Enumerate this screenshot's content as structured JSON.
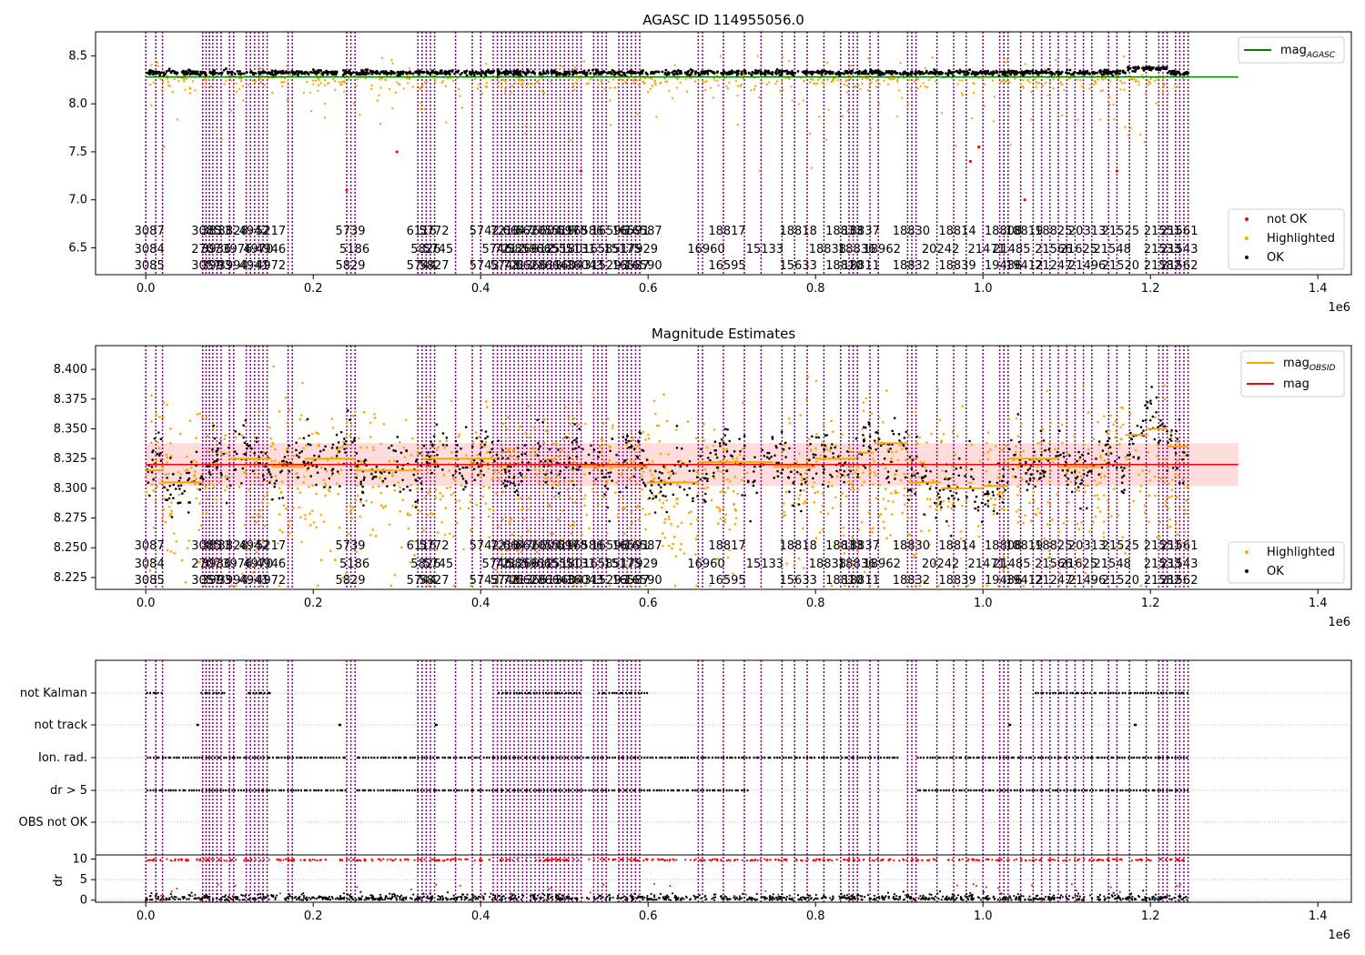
{
  "chart_data": [
    {
      "type": "scatter",
      "title": "AGASC ID 114955056.0",
      "xlim": [
        -60000,
        1440000
      ],
      "ylim": [
        6.22,
        8.75
      ],
      "x_ticks": [
        "0.0",
        "0.2",
        "0.4",
        "0.6",
        "0.8",
        "1.0",
        "1.2",
        "1.4"
      ],
      "x_tick_values": [
        0,
        200000,
        400000,
        600000,
        800000,
        1000000,
        1200000,
        1400000
      ],
      "x_offset_label": "1e6",
      "y_ticks": [
        "6.5",
        "7.0",
        "7.5",
        "8.0",
        "8.5"
      ],
      "y_tick_values": [
        6.5,
        7.0,
        7.5,
        8.0,
        8.5
      ],
      "line": {
        "name": "mag",
        "name_sub": "AGASC",
        "y": 8.28,
        "x_range": [
          0,
          1305000
        ],
        "color": "#008000"
      },
      "ok_band": {
        "x_range": [
          0,
          1245000
        ],
        "y_center": 8.325,
        "spread": 0.03
      },
      "scatter_series": [
        {
          "name": "not OK",
          "color": "#ff0000"
        },
        {
          "name": "Highlighted",
          "color": "#ffa500"
        },
        {
          "name": "OK",
          "color": "#000000"
        }
      ],
      "not_ok_points": [
        [
          300000,
          7.5
        ],
        [
          240000,
          7.1
        ],
        [
          985000,
          7.4
        ],
        [
          995000,
          7.55
        ],
        [
          1050000,
          7.0
        ],
        [
          1160000,
          7.3
        ],
        [
          520000,
          7.3
        ]
      ],
      "legend_position": "upper right (line), lower right (points)"
    },
    {
      "type": "scatter",
      "title": "Magnitude Estimates",
      "xlim": [
        -60000,
        1440000
      ],
      "ylim": [
        8.215,
        8.42
      ],
      "x_ticks": [
        "0.0",
        "0.2",
        "0.4",
        "0.6",
        "0.8",
        "1.0",
        "1.2",
        "1.4"
      ],
      "x_tick_values": [
        0,
        200000,
        400000,
        600000,
        800000,
        1000000,
        1200000,
        1400000
      ],
      "x_offset_label": "1e6",
      "y_ticks": [
        "8.225",
        "8.250",
        "8.275",
        "8.300",
        "8.325",
        "8.350",
        "8.375",
        "8.400"
      ],
      "y_tick_values": [
        8.225,
        8.25,
        8.275,
        8.3,
        8.325,
        8.35,
        8.375,
        8.4
      ],
      "mag_line": {
        "name": "mag",
        "y": 8.32,
        "band": [
          8.302,
          8.338
        ],
        "x_range": [
          0,
          1305000
        ],
        "color": "#ff0000"
      },
      "mag_obsid_label": {
        "name": "mag",
        "name_sub": "OBSID",
        "color": "#ffa500"
      },
      "mag_obsid_segments": [
        [
          0,
          20000,
          8.315
        ],
        [
          20000,
          70000,
          8.305
        ],
        [
          70000,
          100000,
          8.32
        ],
        [
          100000,
          150000,
          8.325
        ],
        [
          150000,
          190000,
          8.318
        ],
        [
          190000,
          250000,
          8.325
        ],
        [
          250000,
          330000,
          8.315
        ],
        [
          330000,
          420000,
          8.325
        ],
        [
          420000,
          520000,
          8.32
        ],
        [
          520000,
          600000,
          8.318
        ],
        [
          600000,
          660000,
          8.305
        ],
        [
          660000,
          750000,
          8.322
        ],
        [
          750000,
          800000,
          8.318
        ],
        [
          800000,
          850000,
          8.325
        ],
        [
          850000,
          870000,
          8.33
        ],
        [
          870000,
          910000,
          8.338
        ],
        [
          910000,
          950000,
          8.305
        ],
        [
          950000,
          1000000,
          8.3
        ],
        [
          1000000,
          1030000,
          8.302
        ],
        [
          1030000,
          1090000,
          8.325
        ],
        [
          1090000,
          1140000,
          8.318
        ],
        [
          1140000,
          1170000,
          8.32
        ],
        [
          1170000,
          1195000,
          8.345
        ],
        [
          1195000,
          1220000,
          8.35
        ],
        [
          1220000,
          1245000,
          8.335
        ]
      ],
      "scatter_series": [
        {
          "name": "Highlighted",
          "color": "#ffa500"
        },
        {
          "name": "OK",
          "color": "#000000"
        }
      ],
      "legend_position": "upper right (lines), lower right (points)"
    },
    {
      "type": "scatter",
      "title": "",
      "xlim": [
        -60000,
        1440000
      ],
      "x_ticks": [
        "0.0",
        "0.2",
        "0.4",
        "0.6",
        "0.8",
        "1.0",
        "1.2",
        "1.4"
      ],
      "x_tick_values": [
        0,
        200000,
        400000,
        600000,
        800000,
        1000000,
        1200000,
        1400000
      ],
      "x_offset_label": "1e6",
      "flag_rows": [
        "not Kalman",
        "not track",
        "Ion. rad.",
        "dr > 5",
        "OBS not OK"
      ],
      "flag_coverage": [
        {
          "flag": "not Kalman",
          "ranges": [
            [
              0,
              20000
            ],
            [
              65000,
              95000
            ],
            [
              120000,
              150000
            ],
            [
              420000,
              520000
            ],
            [
              540000,
              600000
            ],
            [
              1060000,
              1245000
            ]
          ]
        },
        {
          "flag": "not track",
          "ranges": [
            [
              60000,
              62000
            ],
            [
              230000,
              232000
            ],
            [
              345000,
              347000
            ],
            [
              1030000,
              1032000
            ],
            [
              1180000,
              1182000
            ]
          ]
        },
        {
          "flag": "Ion. rad.",
          "ranges": [
            [
              0,
              240000
            ],
            [
              250000,
              720000
            ],
            [
              720000,
              900000
            ],
            [
              920000,
              1245000
            ]
          ]
        },
        {
          "flag": "dr > 5",
          "ranges": [
            [
              0,
              240000
            ],
            [
              250000,
              720000
            ],
            [
              920000,
              1245000
            ]
          ]
        },
        {
          "flag": "OBS not OK",
          "ranges": []
        }
      ],
      "dr_ylabel": "dr",
      "dr_ylim": [
        -0.5,
        11
      ],
      "dr_ticks": [
        "0",
        "5",
        "10"
      ],
      "dr_tick_values": [
        0,
        5,
        10
      ],
      "dr_threshold": 10
    }
  ],
  "obsid_labels": {
    "row1": [
      "3087",
      "3085",
      "3813",
      "3828",
      "4942",
      "5217",
      "5739",
      "6116",
      "5772",
      "5742",
      "7210",
      "6647",
      "6620",
      "6604",
      "5519",
      "5978",
      "16586",
      "16596",
      "16591",
      "16587",
      "18817",
      "18818",
      "18833",
      "18837",
      "18830",
      "18814",
      "18808",
      "18819",
      "18825",
      "20313",
      "21525",
      "21551",
      "21561"
    ],
    "row2": [
      "3084",
      "2707",
      "3936",
      "3976",
      "4970",
      "4946",
      "5186",
      "5826",
      "5745",
      "5746",
      "7212",
      "5859",
      "6612",
      "6655",
      "15180",
      "5131",
      "16585",
      "15175",
      "17929",
      "16960",
      "15133",
      "18838",
      "18836",
      "18962",
      "20242",
      "21471",
      "21485",
      "21566",
      "21625",
      "21548",
      "21533",
      "21543"
    ],
    "row3": [
      "3085",
      "3057",
      "3993",
      "3994",
      "4941",
      "4972",
      "5829",
      "5744",
      "5827",
      "5743",
      "5748",
      "7213",
      "6628",
      "6613",
      "6643",
      "16043",
      "16043",
      "15293",
      "16587",
      "16590",
      "16595",
      "15633",
      "18810",
      "18811",
      "18832",
      "18839",
      "19436",
      "19412",
      "21247",
      "21496",
      "21520",
      "21582",
      "21562"
    ]
  },
  "obsid_boundaries": [
    0,
    12000,
    20000,
    68000,
    72000,
    76000,
    80000,
    85000,
    90000,
    100000,
    105000,
    120000,
    125000,
    130000,
    135000,
    140000,
    145000,
    170000,
    175000,
    240000,
    245000,
    250000,
    325000,
    330000,
    335000,
    340000,
    345000,
    370000,
    390000,
    400000,
    415000,
    420000,
    425000,
    430000,
    435000,
    440000,
    445000,
    450000,
    455000,
    460000,
    465000,
    470000,
    475000,
    480000,
    485000,
    490000,
    495000,
    500000,
    505000,
    510000,
    515000,
    520000,
    535000,
    540000,
    545000,
    550000,
    565000,
    570000,
    575000,
    580000,
    585000,
    590000,
    660000,
    665000,
    690000,
    715000,
    735000,
    760000,
    775000,
    790000,
    810000,
    830000,
    840000,
    845000,
    850000,
    865000,
    875000,
    910000,
    915000,
    920000,
    945000,
    965000,
    980000,
    1000000,
    1020000,
    1025000,
    1030000,
    1045000,
    1060000,
    1070000,
    1080000,
    1090000,
    1100000,
    1110000,
    1120000,
    1130000,
    1150000,
    1160000,
    1175000,
    1195000,
    1210000,
    1215000,
    1220000,
    1230000,
    1235000,
    1240000,
    1245000
  ],
  "colors": {
    "boundary": "#800080",
    "ok": "#000000",
    "highlighted": "#ffa500",
    "not_ok": "#ff0000",
    "agasc_line": "#008000",
    "mag_line": "#ff0000",
    "mag_band": "#ffc0c0",
    "mag_obsid": "#ffa500"
  }
}
